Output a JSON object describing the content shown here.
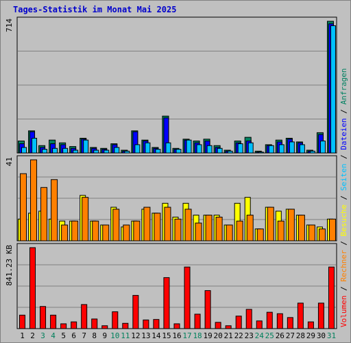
{
  "title": "Tages-Statistik im Monat Mai 2025",
  "colors": {
    "background": "#c0c0c0",
    "title": "#0000cc",
    "hits": "#008060",
    "files": "#0000ff",
    "pages": "#00c0ff",
    "visits": "#ffff00",
    "sites": "#ff8000",
    "kbytes": "#ff0000",
    "weekend_day": "#00805c"
  },
  "chart_data": [
    {
      "type": "bar",
      "name": "panel-top",
      "max_label": "714",
      "ylim": [
        0,
        714
      ],
      "categories": [
        "1",
        "2",
        "3",
        "4",
        "5",
        "6",
        "7",
        "8",
        "9",
        "10",
        "11",
        "12",
        "13",
        "14",
        "15",
        "16",
        "17",
        "18",
        "19",
        "20",
        "21",
        "22",
        "23",
        "24",
        "25",
        "26",
        "27",
        "28",
        "29",
        "30",
        "31"
      ],
      "weekend_days": [
        "3",
        "4",
        "10",
        "11",
        "17",
        "18",
        "24",
        "25",
        "31"
      ],
      "legend_text": [
        "Anfragen",
        "Dateien",
        "Seiten"
      ],
      "series": [
        {
          "name": "Anfragen",
          "values": [
            65,
            120,
            40,
            70,
            55,
            35,
            80,
            30,
            25,
            50,
            15,
            120,
            70,
            30,
            200,
            25,
            75,
            65,
            75,
            40,
            15,
            65,
            85,
            10,
            45,
            70,
            80,
            60,
            15,
            110,
            714
          ]
        },
        {
          "name": "Dateien",
          "values": [
            50,
            115,
            30,
            50,
            45,
            25,
            75,
            25,
            20,
            45,
            10,
            115,
            65,
            25,
            190,
            20,
            70,
            55,
            65,
            30,
            10,
            55,
            65,
            5,
            40,
            60,
            75,
            55,
            10,
            100,
            700
          ]
        },
        {
          "name": "Seiten",
          "values": [
            30,
            80,
            20,
            25,
            25,
            15,
            70,
            15,
            15,
            30,
            10,
            45,
            55,
            20,
            55,
            20,
            70,
            45,
            40,
            25,
            10,
            50,
            55,
            5,
            40,
            45,
            60,
            45,
            10,
            65,
            690
          ]
        }
      ]
    },
    {
      "type": "bar",
      "name": "panel-middle",
      "max_label": "41",
      "ylim": [
        0,
        41
      ],
      "legend_text": [
        "Besuche",
        "Rechner"
      ],
      "series": [
        {
          "name": "Besuche",
          "values": [
            11,
            14,
            15,
            11,
            10,
            10,
            23,
            10,
            8,
            17,
            7,
            10,
            16,
            14,
            19,
            12,
            19,
            13,
            13,
            13,
            8,
            19,
            22,
            6,
            17,
            15,
            16,
            13,
            8,
            7,
            11
          ]
        },
        {
          "name": "Rechner",
          "values": [
            34,
            41,
            27,
            31,
            8,
            10,
            22,
            10,
            8,
            16,
            8,
            10,
            17,
            14,
            17,
            11,
            16,
            9,
            13,
            12,
            8,
            10,
            13,
            6,
            17,
            10,
            16,
            13,
            8,
            6,
            11
          ]
        }
      ]
    },
    {
      "type": "bar",
      "name": "panel-bottom",
      "max_label": "841.23 KB",
      "ylim": [
        0,
        841.23
      ],
      "legend_text": [
        "Volumen"
      ],
      "series": [
        {
          "name": "Volumen",
          "values": [
            140,
            841.23,
            230,
            140,
            50,
            70,
            250,
            100,
            30,
            175,
            55,
            345,
            90,
            95,
            530,
            50,
            640,
            150,
            395,
            65,
            30,
            130,
            200,
            80,
            170,
            155,
            115,
            265,
            70,
            265,
            640
          ]
        }
      ]
    }
  ]
}
